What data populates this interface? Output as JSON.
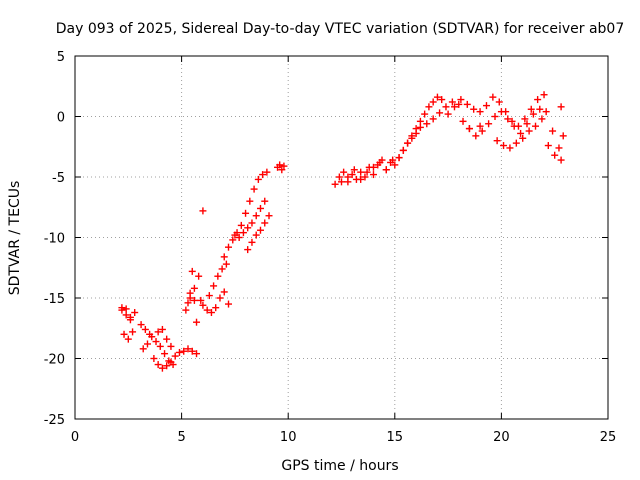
{
  "chart_data": {
    "type": "scatter",
    "title": "Day 093 of 2025, Sidereal Day-to-day VTEC variation (SDTVAR) for receiver ab07",
    "xlabel": "GPS time / hours",
    "ylabel": "SDTVAR / TECUs",
    "xlim": [
      0,
      25
    ],
    "ylim": [
      -25,
      5
    ],
    "xticks": [
      "0",
      "5",
      "10",
      "15",
      "20",
      "25"
    ],
    "yticks": [
      "5",
      "0",
      "-5",
      "-10",
      "-15",
      "-20",
      "-25"
    ],
    "xtick_values": [
      0,
      5,
      10,
      15,
      20,
      25
    ],
    "ytick_values": [
      5,
      0,
      -5,
      -10,
      -15,
      -20,
      -25
    ],
    "grid": true,
    "marker": "plus",
    "color": "#ff0000",
    "series": [
      {
        "x": [
          2.2,
          2.4,
          2.6,
          2.8,
          2.3,
          2.5,
          2.7,
          2.2,
          2.4,
          2.6,
          3.1,
          3.3,
          3.5,
          3.8,
          4.0,
          4.2,
          4.4,
          4.6,
          3.2,
          3.4,
          3.6,
          3.9,
          4.1,
          4.3,
          4.5,
          3.7,
          3.9,
          4.1,
          4.3,
          4.5,
          4.7,
          4.9,
          5.1,
          5.3,
          5.5,
          5.7,
          5.2,
          5.4,
          5.6,
          5.8,
          5.5,
          5.6,
          5.7,
          5.3,
          5.4,
          5.9,
          6.0,
          6.2,
          6.4,
          6.6,
          6.8,
          7.0,
          6.3,
          6.5,
          6.7,
          6.9,
          7.1,
          7.2,
          7.0,
          7.2,
          7.4,
          7.6,
          7.8,
          8.0,
          8.2,
          8.4,
          8.6,
          8.8,
          9.0,
          7.5,
          7.7,
          7.9,
          8.1,
          8.3,
          8.5,
          8.7,
          8.9,
          8.1,
          8.3,
          8.5,
          8.7,
          8.9,
          9.1,
          9.5,
          9.6,
          9.7,
          9.8,
          6.0,
          12.2,
          12.4,
          12.6,
          12.8,
          13.0,
          13.2,
          13.4,
          13.6,
          13.8,
          14.0,
          14.2,
          14.4,
          14.6,
          14.8,
          12.5,
          12.8,
          13.1,
          13.4,
          13.7,
          14.0,
          14.3,
          14.6,
          14.9,
          15.2,
          15.4,
          15.6,
          15.8,
          16.0,
          16.2,
          16.4,
          16.6,
          16.8,
          17.0,
          17.2,
          15.0,
          15.2,
          15.4,
          15.6,
          15.8,
          16.0,
          16.2,
          16.5,
          16.8,
          17.1,
          17.4,
          17.7,
          18.0,
          17.5,
          17.8,
          18.1,
          18.4,
          18.7,
          19.0,
          19.3,
          19.6,
          19.9,
          20.2,
          20.5,
          20.8,
          21.1,
          21.4,
          21.7,
          22.0,
          18.2,
          18.5,
          18.8,
          19.1,
          19.4,
          19.7,
          20.0,
          20.3,
          20.6,
          20.9,
          21.2,
          21.5,
          21.8,
          22.1,
          22.4,
          22.7,
          19.8,
          20.1,
          20.4,
          20.7,
          21.0,
          21.3,
          21.6,
          21.9,
          22.2,
          22.5,
          22.8,
          18.5,
          19.0,
          22.8,
          22.9
        ],
        "y": [
          -15.8,
          -16.4,
          -16.8,
          -16.2,
          -18.0,
          -18.4,
          -17.8,
          -16.0,
          -15.9,
          -16.6,
          -17.2,
          -17.6,
          -18.0,
          -18.6,
          -19.0,
          -19.6,
          -20.2,
          -20.5,
          -19.2,
          -18.8,
          -18.2,
          -17.8,
          -17.6,
          -18.4,
          -19.0,
          -20.0,
          -20.5,
          -20.8,
          -20.6,
          -20.3,
          -19.8,
          -19.5,
          -19.4,
          -19.2,
          -19.4,
          -19.6,
          -16.0,
          -15.0,
          -14.2,
          -13.2,
          -12.8,
          -15.2,
          -17.0,
          -15.4,
          -14.6,
          -15.2,
          -15.6,
          -16.0,
          -16.2,
          -15.8,
          -15.0,
          -14.5,
          -14.8,
          -14.0,
          -13.2,
          -12.6,
          -12.2,
          -15.5,
          -11.6,
          -10.8,
          -10.2,
          -9.6,
          -9.0,
          -8.0,
          -7.0,
          -6.0,
          -5.2,
          -4.8,
          -4.6,
          -9.8,
          -10.0,
          -9.6,
          -9.2,
          -8.8,
          -8.2,
          -7.6,
          -7.0,
          -11.0,
          -10.4,
          -9.8,
          -9.4,
          -8.8,
          -8.2,
          -4.2,
          -4.0,
          -4.4,
          -4.1,
          -7.8,
          -5.6,
          -5.0,
          -4.6,
          -5.4,
          -4.8,
          -5.2,
          -4.6,
          -5.0,
          -4.2,
          -4.8,
          -4.0,
          -3.6,
          -4.4,
          -3.8,
          -5.4,
          -5.0,
          -4.4,
          -5.2,
          -4.6,
          -4.2,
          -3.8,
          -4.4,
          -3.6,
          -3.4,
          -2.8,
          -2.2,
          -1.6,
          -1.0,
          -0.4,
          0.2,
          0.8,
          1.2,
          1.6,
          1.4,
          -4.0,
          -3.4,
          -2.8,
          -2.2,
          -1.8,
          -1.4,
          -0.9,
          -0.6,
          -0.2,
          0.3,
          0.8,
          1.2,
          1.0,
          0.2,
          0.8,
          1.4,
          1.0,
          0.6,
          0.4,
          0.9,
          1.6,
          1.2,
          0.4,
          -0.4,
          -0.8,
          -0.2,
          0.6,
          1.4,
          1.8,
          -0.4,
          -1.0,
          -1.6,
          -1.2,
          -0.6,
          0.0,
          0.4,
          -0.2,
          -0.8,
          -1.4,
          -0.6,
          0.2,
          0.6,
          0.4,
          -1.2,
          -2.6,
          -2.0,
          -2.4,
          -2.6,
          -2.2,
          -1.8,
          -1.2,
          -0.8,
          -0.2,
          -2.4,
          -3.2,
          -3.6,
          -1.0,
          -0.8,
          0.8,
          -1.6
        ]
      }
    ]
  }
}
